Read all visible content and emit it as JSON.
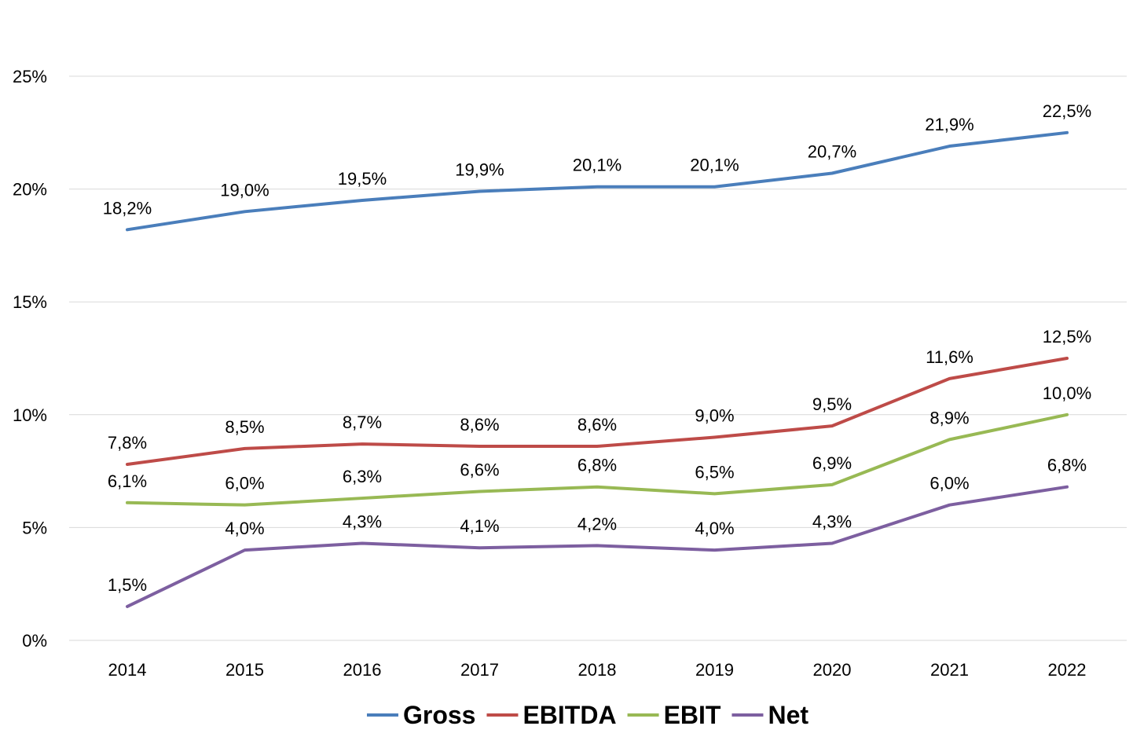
{
  "chart_data": {
    "type": "line",
    "title": "",
    "xlabel": "",
    "ylabel": "",
    "categories": [
      "2014",
      "2015",
      "2016",
      "2017",
      "2018",
      "2019",
      "2020",
      "2021",
      "2022"
    ],
    "ylim": [
      0,
      25
    ],
    "yticks": [
      0,
      5,
      10,
      15,
      20,
      25
    ],
    "ytick_labels": [
      "0%",
      "5%",
      "10%",
      "15%",
      "20%",
      "25%"
    ],
    "grid": true,
    "legend_position": "bottom",
    "series": [
      {
        "name": "Gross",
        "color": "#4a7ebb",
        "values": [
          18.2,
          19.0,
          19.5,
          19.9,
          20.1,
          20.1,
          20.7,
          21.9,
          22.5
        ],
        "labels": [
          "18,2%",
          "19,0%",
          "19,5%",
          "19,9%",
          "20,1%",
          "20,1%",
          "20,7%",
          "21,9%",
          "22,5%"
        ]
      },
      {
        "name": "EBITDA",
        "color": "#be4b48",
        "values": [
          7.8,
          8.5,
          8.7,
          8.6,
          8.6,
          9.0,
          9.5,
          11.6,
          12.5
        ],
        "labels": [
          "7,8%",
          "8,5%",
          "8,7%",
          "8,6%",
          "8,6%",
          "9,0%",
          "9,5%",
          "11,6%",
          "12,5%"
        ]
      },
      {
        "name": "EBIT",
        "color": "#98b954",
        "values": [
          6.1,
          6.0,
          6.3,
          6.6,
          6.8,
          6.5,
          6.9,
          8.9,
          10.0
        ],
        "labels": [
          "6,1%",
          "6,0%",
          "6,3%",
          "6,6%",
          "6,8%",
          "6,5%",
          "6,9%",
          "8,9%",
          "10,0%"
        ]
      },
      {
        "name": "Net",
        "color": "#7d5fa0",
        "values": [
          1.5,
          4.0,
          4.3,
          4.1,
          4.2,
          4.0,
          4.3,
          6.0,
          6.8
        ],
        "labels": [
          "1,5%",
          "4,0%",
          "4,3%",
          "4,1%",
          "4,2%",
          "4,0%",
          "4,3%",
          "6,0%",
          "6,8%"
        ]
      }
    ]
  }
}
